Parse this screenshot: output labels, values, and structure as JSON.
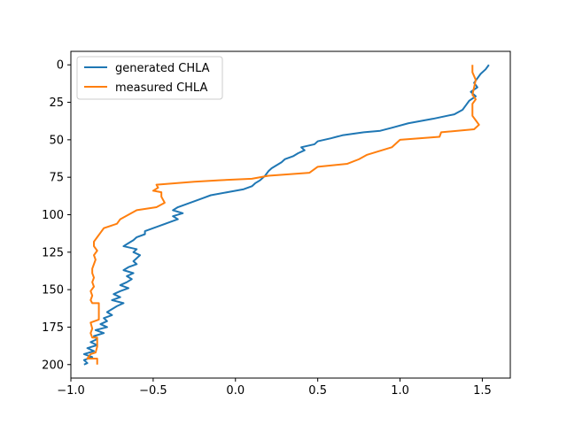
{
  "chart_data": {
    "type": "line",
    "title": "",
    "xlabel": "",
    "ylabel": "",
    "xlim": [
      -1.0,
      1.67
    ],
    "ylim": [
      209,
      -9
    ],
    "y_inverted": true,
    "xticks": [
      -1.0,
      -0.5,
      0.0,
      0.5,
      1.0,
      1.5
    ],
    "xtick_labels": [
      "−1.0",
      "−0.5",
      "0.0",
      "0.5",
      "1.0",
      "1.5"
    ],
    "yticks": [
      0,
      25,
      50,
      75,
      100,
      125,
      150,
      175,
      200
    ],
    "ytick_labels": [
      "0",
      "25",
      "50",
      "75",
      "100",
      "125",
      "150",
      "175",
      "200"
    ],
    "grid": false,
    "legend_position": "top-left",
    "series": [
      {
        "name": "generated CHLA",
        "color": "#1f77b4",
        "points": [
          [
            1.54,
            0
          ],
          [
            1.52,
            3
          ],
          [
            1.49,
            6
          ],
          [
            1.47,
            9
          ],
          [
            1.45,
            12
          ],
          [
            1.47,
            15
          ],
          [
            1.43,
            18
          ],
          [
            1.46,
            21
          ],
          [
            1.42,
            24
          ],
          [
            1.4,
            27
          ],
          [
            1.38,
            30
          ],
          [
            1.33,
            33
          ],
          [
            1.2,
            36
          ],
          [
            1.05,
            39
          ],
          [
            0.95,
            42
          ],
          [
            0.88,
            44
          ],
          [
            0.78,
            45
          ],
          [
            0.65,
            47
          ],
          [
            0.58,
            49
          ],
          [
            0.5,
            51
          ],
          [
            0.48,
            53
          ],
          [
            0.4,
            55
          ],
          [
            0.42,
            57
          ],
          [
            0.38,
            59
          ],
          [
            0.35,
            61
          ],
          [
            0.3,
            63
          ],
          [
            0.28,
            65
          ],
          [
            0.25,
            67
          ],
          [
            0.22,
            69
          ],
          [
            0.2,
            71
          ],
          [
            0.18,
            74
          ],
          [
            0.15,
            77
          ],
          [
            0.12,
            79
          ],
          [
            0.1,
            81
          ],
          [
            0.05,
            83
          ],
          [
            -0.05,
            85
          ],
          [
            -0.15,
            87
          ],
          [
            -0.2,
            89
          ],
          [
            -0.25,
            91
          ],
          [
            -0.3,
            93
          ],
          [
            -0.35,
            95
          ],
          [
            -0.38,
            97
          ],
          [
            -0.32,
            99
          ],
          [
            -0.38,
            101
          ],
          [
            -0.35,
            103
          ],
          [
            -0.4,
            105
          ],
          [
            -0.45,
            107
          ],
          [
            -0.5,
            109
          ],
          [
            -0.55,
            111
          ],
          [
            -0.55,
            113
          ],
          [
            -0.6,
            115
          ],
          [
            -0.62,
            117
          ],
          [
            -0.65,
            119
          ],
          [
            -0.68,
            121
          ],
          [
            -0.6,
            123
          ],
          [
            -0.62,
            125
          ],
          [
            -0.58,
            127
          ],
          [
            -0.6,
            129
          ],
          [
            -0.62,
            131
          ],
          [
            -0.6,
            133
          ],
          [
            -0.65,
            135
          ],
          [
            -0.68,
            137
          ],
          [
            -0.62,
            139
          ],
          [
            -0.66,
            141
          ],
          [
            -0.63,
            143
          ],
          [
            -0.66,
            145
          ],
          [
            -0.7,
            147
          ],
          [
            -0.65,
            149
          ],
          [
            -0.7,
            151
          ],
          [
            -0.74,
            153
          ],
          [
            -0.7,
            155
          ],
          [
            -0.75,
            157
          ],
          [
            -0.68,
            159
          ],
          [
            -0.72,
            161
          ],
          [
            -0.75,
            163
          ],
          [
            -0.78,
            165
          ],
          [
            -0.75,
            167
          ],
          [
            -0.8,
            169
          ],
          [
            -0.78,
            171
          ],
          [
            -0.82,
            173
          ],
          [
            -0.78,
            175
          ],
          [
            -0.85,
            177
          ],
          [
            -0.8,
            179
          ],
          [
            -0.86,
            181
          ],
          [
            -0.84,
            183
          ],
          [
            -0.88,
            185
          ],
          [
            -0.84,
            187
          ],
          [
            -0.9,
            189
          ],
          [
            -0.86,
            191
          ],
          [
            -0.92,
            193
          ],
          [
            -0.87,
            195
          ],
          [
            -0.92,
            197
          ],
          [
            -0.9,
            199
          ],
          [
            -0.92,
            200
          ]
        ]
      },
      {
        "name": "measured CHLA",
        "color": "#ff7f0e",
        "points": [
          [
            1.44,
            0
          ],
          [
            1.44,
            5
          ],
          [
            1.46,
            10
          ],
          [
            1.45,
            15
          ],
          [
            1.44,
            20
          ],
          [
            1.46,
            23
          ],
          [
            1.44,
            26
          ],
          [
            1.44,
            30
          ],
          [
            1.44,
            34
          ],
          [
            1.46,
            37
          ],
          [
            1.48,
            40
          ],
          [
            1.45,
            43
          ],
          [
            1.25,
            45
          ],
          [
            1.24,
            48
          ],
          [
            1.0,
            50
          ],
          [
            0.95,
            55
          ],
          [
            0.8,
            60
          ],
          [
            0.75,
            63
          ],
          [
            0.68,
            66
          ],
          [
            0.5,
            68
          ],
          [
            0.45,
            72
          ],
          [
            0.2,
            74
          ],
          [
            0.1,
            76
          ],
          [
            -0.1,
            77
          ],
          [
            -0.25,
            78
          ],
          [
            -0.48,
            80
          ],
          [
            -0.47,
            82
          ],
          [
            -0.5,
            84
          ],
          [
            -0.45,
            85
          ],
          [
            -0.45,
            88
          ],
          [
            -0.43,
            92
          ],
          [
            -0.48,
            95
          ],
          [
            -0.6,
            97
          ],
          [
            -0.65,
            100
          ],
          [
            -0.7,
            103
          ],
          [
            -0.72,
            106
          ],
          [
            -0.8,
            109
          ],
          [
            -0.82,
            112
          ],
          [
            -0.84,
            115
          ],
          [
            -0.86,
            118
          ],
          [
            -0.86,
            121
          ],
          [
            -0.84,
            124
          ],
          [
            -0.86,
            127
          ],
          [
            -0.85,
            130
          ],
          [
            -0.86,
            133
          ],
          [
            -0.87,
            136
          ],
          [
            -0.87,
            139
          ],
          [
            -0.86,
            142
          ],
          [
            -0.87,
            145
          ],
          [
            -0.86,
            148
          ],
          [
            -0.88,
            151
          ],
          [
            -0.87,
            154
          ],
          [
            -0.88,
            157
          ],
          [
            -0.87,
            159
          ],
          [
            -0.83,
            159
          ],
          [
            -0.83,
            165
          ],
          [
            -0.83,
            170
          ],
          [
            -0.88,
            172
          ],
          [
            -0.87,
            176
          ],
          [
            -0.88,
            179
          ],
          [
            -0.87,
            182
          ],
          [
            -0.84,
            182
          ],
          [
            -0.84,
            188
          ],
          [
            -0.85,
            192
          ],
          [
            -0.88,
            193
          ],
          [
            -0.9,
            196
          ],
          [
            -0.84,
            196
          ],
          [
            -0.84,
            200
          ]
        ]
      }
    ]
  }
}
